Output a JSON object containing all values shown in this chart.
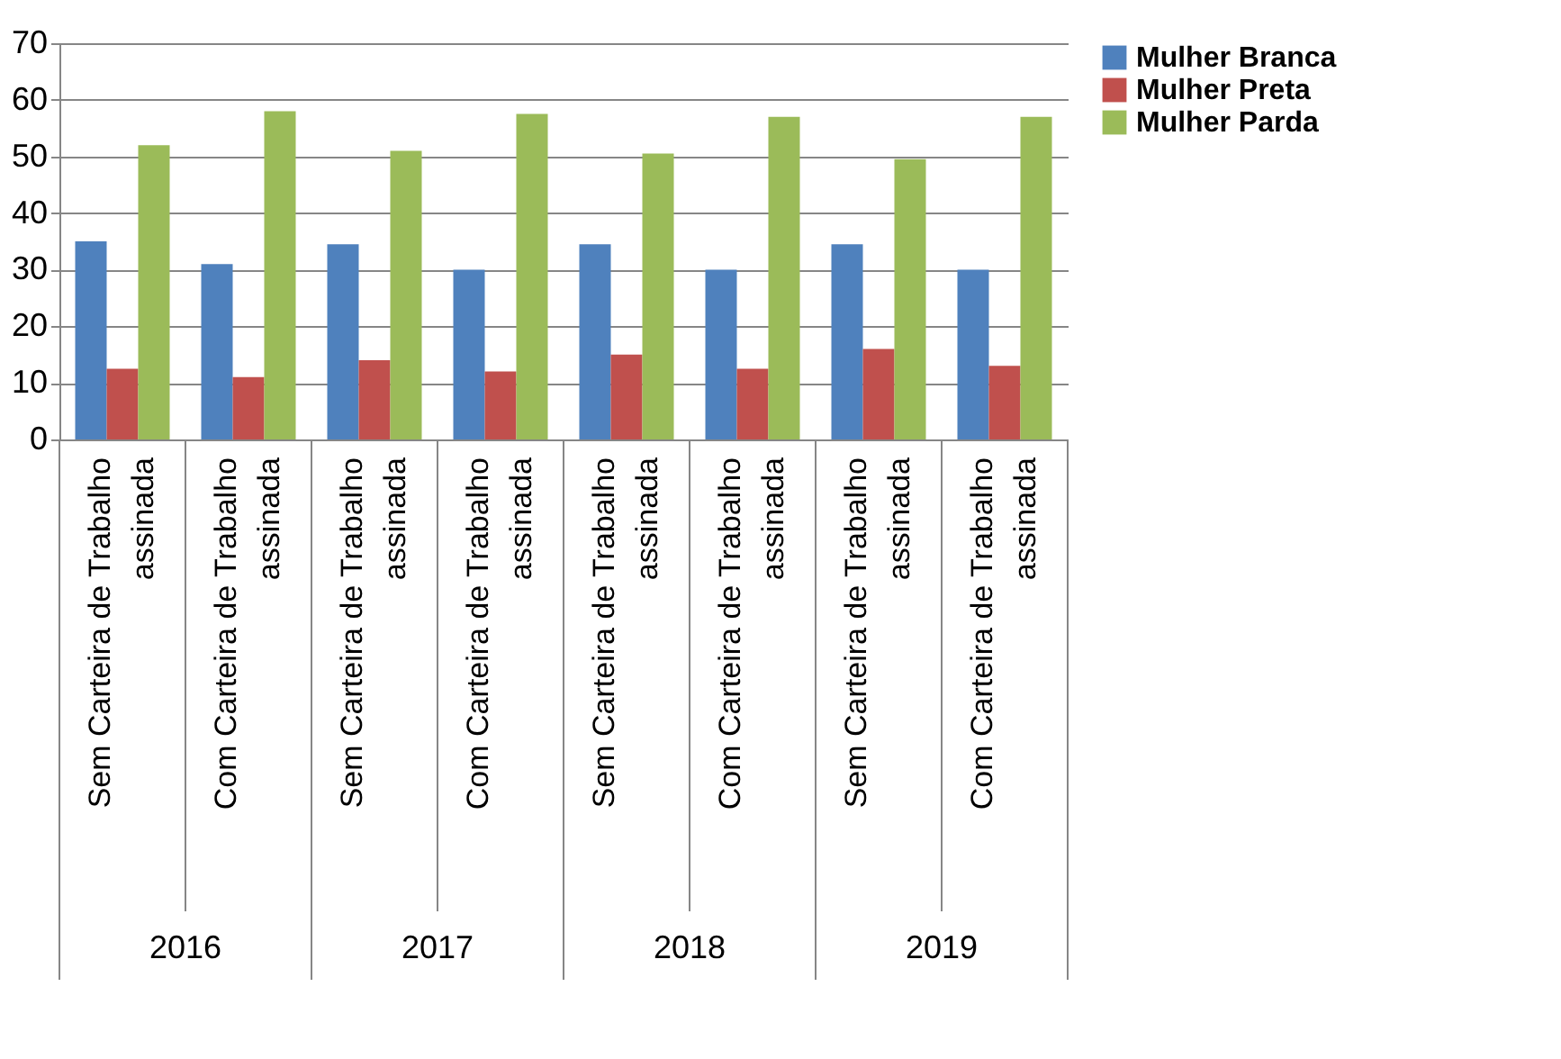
{
  "chart_data": {
    "type": "bar",
    "categories": [
      "Sem Carteira de Trabalho assinada",
      "Com Carteira de Trabalho assinada",
      "Sem Carteira de Trabalho assinada",
      "Com Carteira de Trabalho assinada",
      "Sem Carteira de Trabalho assinada",
      "Com Carteira de Trabalho assinada",
      "Sem Carteira de Trabalho assinada",
      "Com Carteira de Trabalho assinada"
    ],
    "series": [
      {
        "name": "Mulher Branca",
        "color": "#4f81bd",
        "values": [
          35,
          31,
          34.5,
          30,
          34.5,
          30,
          34.5,
          30
        ]
      },
      {
        "name": "Mulher Preta",
        "color": "#c0504d",
        "values": [
          12.5,
          11,
          14,
          12,
          15,
          12.5,
          16,
          13
        ]
      },
      {
        "name": "Mulher Parda",
        "color": "#9bbb59",
        "values": [
          52,
          58,
          51,
          57.5,
          50.5,
          57,
          49.5,
          57
        ]
      }
    ],
    "annotations": [
      "2016",
      "2017",
      "2018",
      "2019"
    ],
    "ylim": [
      0,
      70
    ],
    "yticks": [
      0,
      10,
      20,
      30,
      40,
      50,
      60,
      70
    ],
    "grid": "y",
    "legend": "right"
  }
}
